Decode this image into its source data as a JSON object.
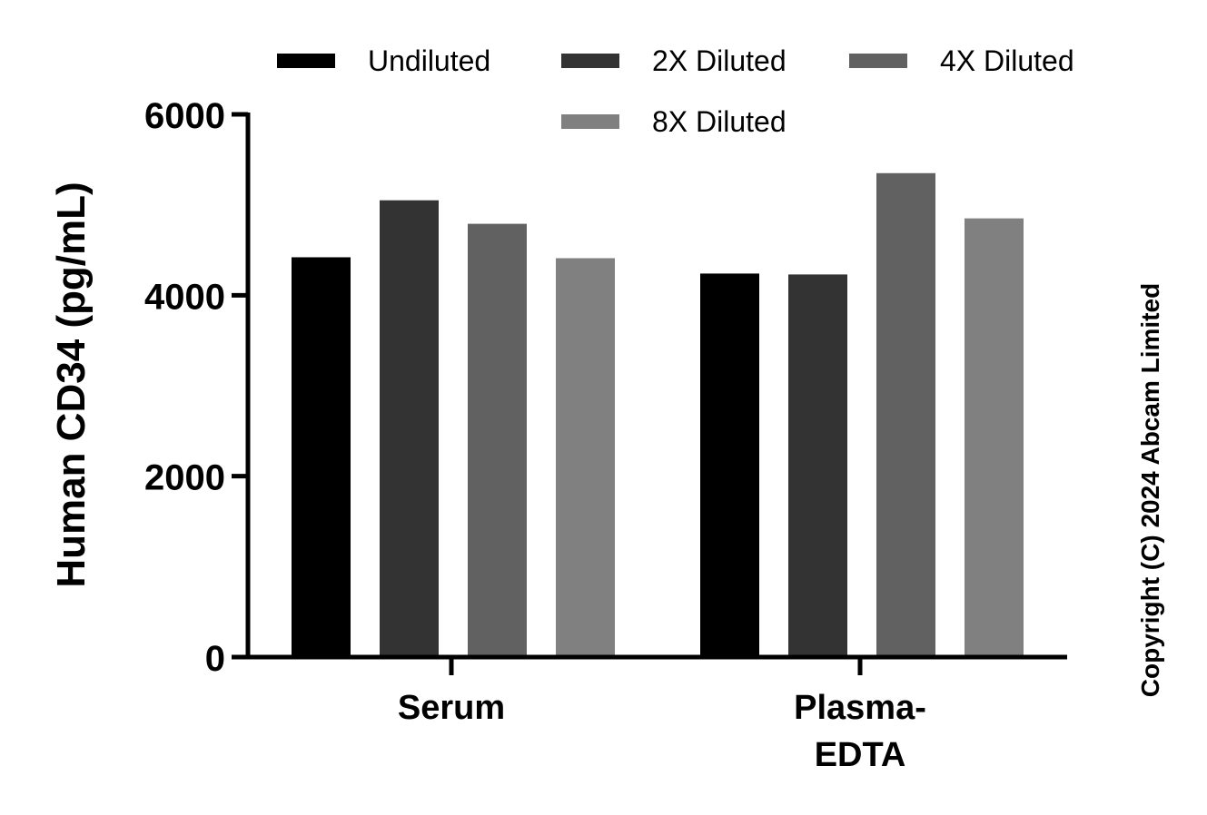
{
  "chart_data": {
    "type": "bar",
    "ylabel": "Human CD34 (pg/mL)",
    "ylim": [
      0,
      6000
    ],
    "y_ticks": [
      "0",
      "2000",
      "4000",
      "6000"
    ],
    "categories": [
      [
        "Serum"
      ],
      [
        "Plasma-",
        "EDTA"
      ]
    ],
    "series": [
      {
        "name": "Undiluted",
        "color": "#000000",
        "values": [
          4420,
          4240
        ]
      },
      {
        "name": "2X Diluted",
        "color": "#333333",
        "values": [
          5050,
          4230
        ]
      },
      {
        "name": "4X Diluted",
        "color": "#616161",
        "values": [
          4790,
          5350
        ]
      },
      {
        "name": "8X Diluted",
        "color": "#808080",
        "values": [
          4410,
          4850
        ]
      }
    ],
    "legend_position": "top",
    "grid": false
  },
  "copyright": "Copyright (C) 2024 Abcam Limited"
}
